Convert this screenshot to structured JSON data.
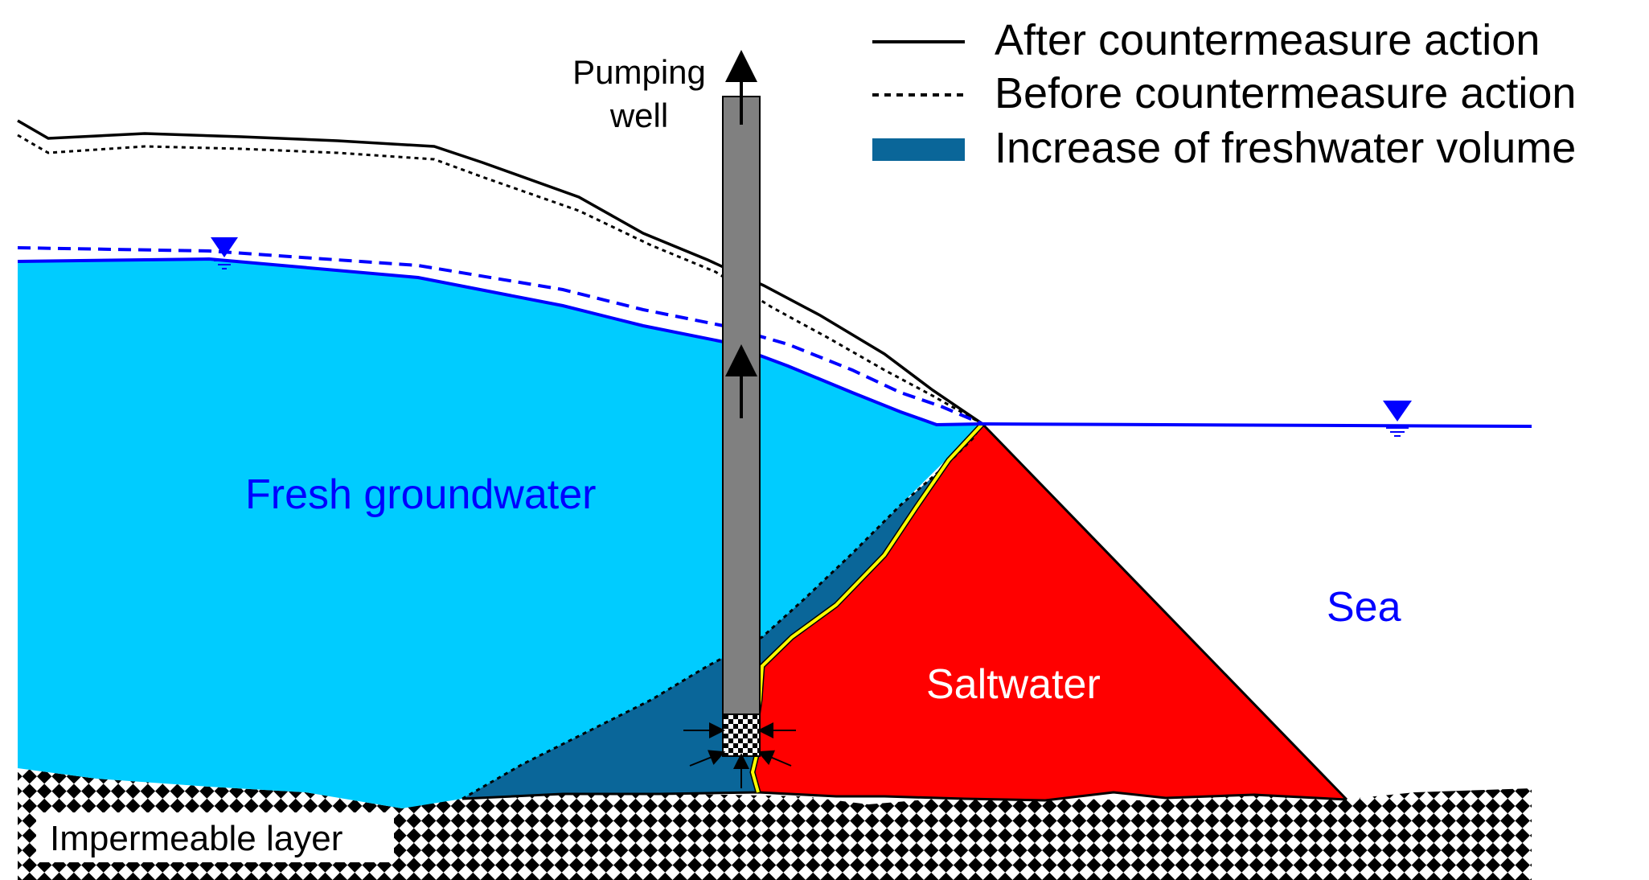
{
  "legend": {
    "after_label": "After countermeasure action",
    "before_label": "Before countermeasure action",
    "increase_label": "Increase of freshwater volume"
  },
  "labels": {
    "well_line1": "Pumping",
    "well_line2": "well",
    "fresh": "Fresh groundwater",
    "sea": "Sea",
    "saltwater": "Saltwater",
    "impermeable": "Impermeable layer"
  },
  "colors": {
    "fresh_groundwater": "#00CCFF",
    "increase_freshwater": "#0A6699",
    "saltwater": "#FF0000",
    "water_table": "#0000FF",
    "interface_after": "#FFFF00",
    "well": "#808080",
    "text_blue": "#0000FF",
    "text_white": "#FFFFFF"
  }
}
